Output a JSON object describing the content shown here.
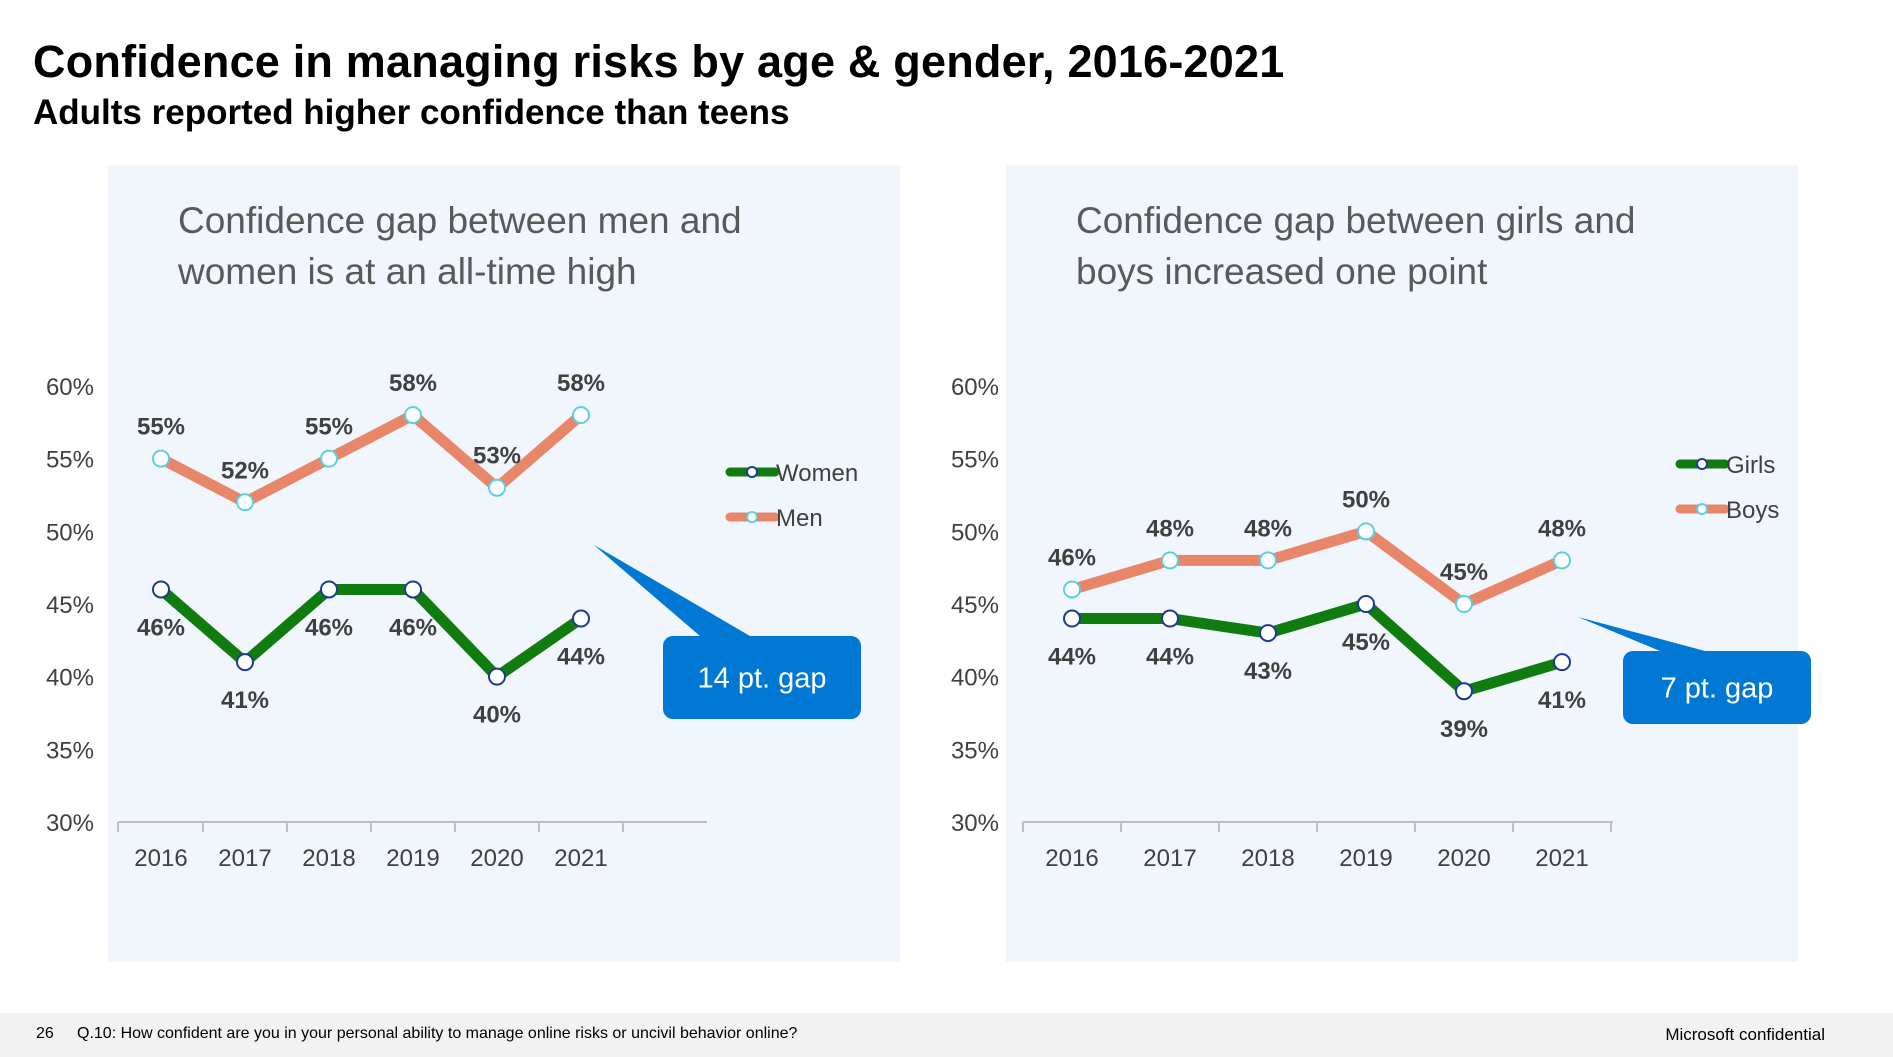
{
  "title": "Confidence in managing risks by age & gender, 2016-2021",
  "subtitle": "Adults reported higher confidence than teens",
  "footer": {
    "page_number": "26",
    "question": "Q.10:  How confident are you in your personal ability to manage online risks or uncivil behavior online?",
    "confidential": "Microsoft confidential"
  },
  "chart_data": [
    {
      "type": "line",
      "title": "Confidence gap between men and women is at an all-time high",
      "categories": [
        "2016",
        "2017",
        "2018",
        "2019",
        "2020",
        "2021"
      ],
      "ylim": [
        30,
        60
      ],
      "yticks": [
        "30%",
        "35%",
        "40%",
        "45%",
        "50%",
        "55%",
        "60%"
      ],
      "series": [
        {
          "name": "Women",
          "values": [
            46,
            41,
            46,
            46,
            40,
            44
          ],
          "labels": [
            "46%",
            "41%",
            "46%",
            "46%",
            "40%",
            "44%"
          ],
          "color": "#107c10",
          "marker_stroke": "#1f3a93"
        },
        {
          "name": "Men",
          "values": [
            55,
            52,
            55,
            58,
            53,
            58
          ],
          "labels": [
            "55%",
            "52%",
            "55%",
            "58%",
            "53%",
            "58%"
          ],
          "color": "#e8866a",
          "marker_stroke": "#5bd0e0"
        }
      ],
      "legend_position": "right",
      "callout": "14 pt. gap",
      "callout_color": "#0078d4"
    },
    {
      "type": "line",
      "title": "Confidence gap between girls and boys increased one point",
      "categories": [
        "2016",
        "2017",
        "2018",
        "2019",
        "2020",
        "2021"
      ],
      "ylim": [
        30,
        60
      ],
      "yticks": [
        "30%",
        "35%",
        "40%",
        "45%",
        "50%",
        "55%",
        "60%"
      ],
      "series": [
        {
          "name": "Girls",
          "values": [
            44,
            44,
            43,
            45,
            39,
            41
          ],
          "labels": [
            "44%",
            "44%",
            "43%",
            "45%",
            "39%",
            "41%"
          ],
          "color": "#107c10",
          "marker_stroke": "#1f3a93"
        },
        {
          "name": "Boys",
          "values": [
            46,
            48,
            48,
            50,
            45,
            48
          ],
          "labels": [
            "46%",
            "48%",
            "48%",
            "50%",
            "45%",
            "48%"
          ],
          "color": "#e8866a",
          "marker_stroke": "#5bd0e0"
        }
      ],
      "legend_position": "right",
      "callout": "7 pt. gap",
      "callout_color": "#0078d4"
    }
  ]
}
